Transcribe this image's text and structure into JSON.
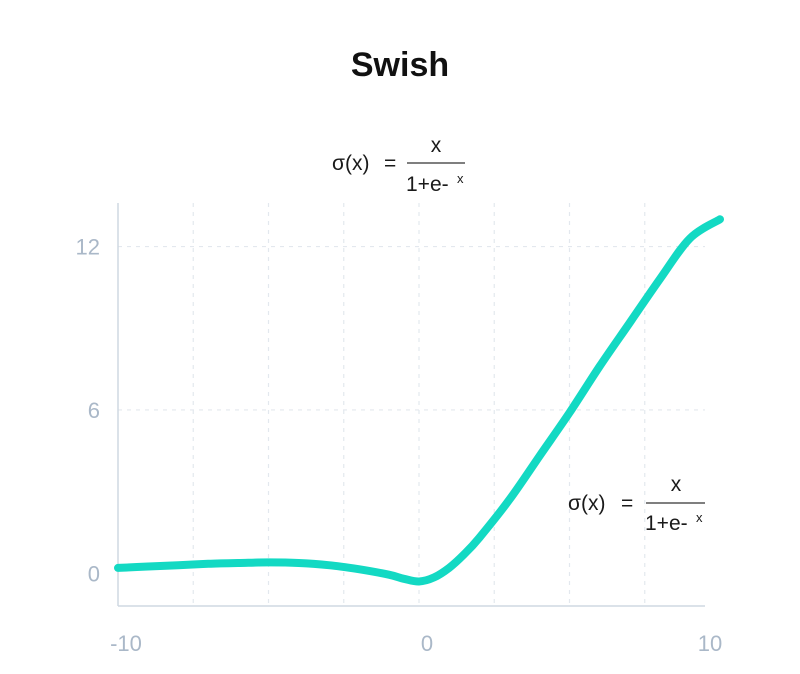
{
  "chart_data": {
    "type": "line",
    "title": "Swish",
    "formula": {
      "lhs": "σ(x)",
      "eq": "=",
      "num": "x",
      "den": "1+e-",
      "den_sup": "x"
    },
    "x_ticks": [
      -10,
      0,
      10
    ],
    "x_tick_labels": [
      "-10",
      "0",
      "10"
    ],
    "y_ticks": [
      0,
      6,
      12
    ],
    "y_tick_labels": [
      "0",
      "6",
      "12"
    ],
    "xlim": [
      -10,
      10
    ],
    "ylim": [
      -1.2,
      13.6
    ],
    "grid": true,
    "series": [
      {
        "color": "#13d9c3",
        "x": [
          -10,
          -9,
          -8,
          -7,
          -6,
          -5,
          -4,
          -3,
          -2,
          -1,
          -0.5,
          0,
          0.5,
          1,
          1.5,
          2,
          3,
          4,
          5,
          6,
          7,
          8,
          9,
          10
        ],
        "y": [
          0.2,
          0.25,
          0.3,
          0.35,
          0.38,
          0.4,
          0.38,
          0.3,
          0.15,
          -0.05,
          -0.2,
          -0.3,
          -0.15,
          0.2,
          0.7,
          1.3,
          2.7,
          4.3,
          5.9,
          7.6,
          9.2,
          10.8,
          12.3,
          13.0
        ]
      }
    ]
  }
}
